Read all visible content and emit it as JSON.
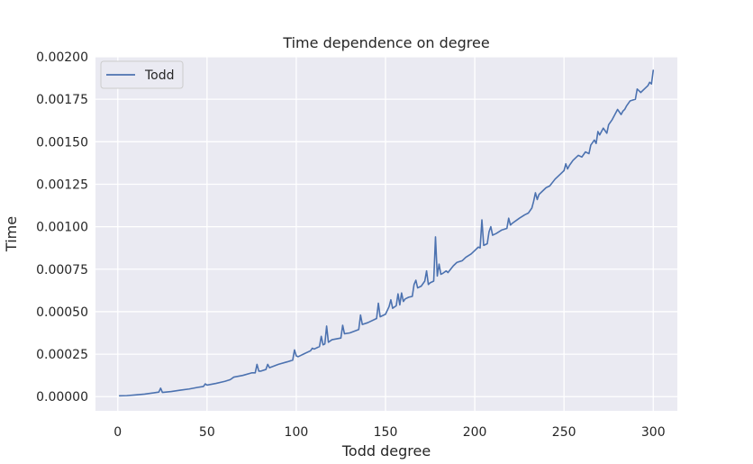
{
  "chart_data": {
    "type": "line",
    "title": "Time dependence on degree",
    "xlabel": "Todd degree",
    "ylabel": "Time",
    "xlim": [
      -12.5,
      313.5
    ],
    "ylim": [
      -8.35e-05,
      0.002
    ],
    "xticks": [
      0,
      50,
      100,
      150,
      200,
      250,
      300
    ],
    "xtick_labels": [
      "0",
      "50",
      "100",
      "150",
      "200",
      "250",
      "300"
    ],
    "yticks": [
      0,
      0.00025,
      0.0005,
      0.00075,
      0.001,
      0.00125,
      0.0015,
      0.00175,
      0.002
    ],
    "ytick_labels": [
      "0.00000",
      "0.00025",
      "0.00050",
      "0.00075",
      "0.00100",
      "0.00125",
      "0.00150",
      "0.00175",
      "0.00200"
    ],
    "grid": true,
    "legend_position": "upper-left",
    "colors": {
      "series": "#4c72b0",
      "background": "#eaeaf2",
      "grid": "#ffffff"
    },
    "series": [
      {
        "name": "Todd",
        "x": [
          1,
          5,
          10,
          15,
          20,
          23,
          24,
          25,
          30,
          35,
          40,
          45,
          48,
          49,
          50,
          55,
          60,
          63,
          65,
          70,
          75,
          77,
          78,
          79,
          80,
          83,
          84,
          85,
          90,
          95,
          98,
          99,
          100,
          101,
          105,
          108,
          109,
          110,
          113,
          114,
          115,
          116,
          117,
          118,
          120,
          125,
          126,
          127,
          130,
          135,
          136,
          137,
          140,
          145,
          146,
          147,
          150,
          152,
          153,
          154,
          156,
          157,
          158,
          159,
          160,
          161,
          163,
          165,
          166,
          167,
          168,
          170,
          172,
          173,
          174,
          175,
          177,
          178,
          179,
          180,
          181,
          182,
          184,
          185,
          188,
          190,
          193,
          195,
          198,
          200,
          202,
          203,
          204,
          205,
          207,
          208,
          209,
          210,
          212,
          215,
          218,
          219,
          220,
          221,
          225,
          228,
          230,
          232,
          233,
          234,
          235,
          236,
          238,
          240,
          242,
          245,
          248,
          250,
          251,
          252,
          253,
          255,
          258,
          260,
          262,
          264,
          265,
          267,
          268,
          269,
          270,
          272,
          274,
          275,
          277,
          280,
          282,
          283,
          284,
          285,
          287,
          290,
          291,
          292,
          293,
          295,
          297,
          298,
          299,
          300
        ],
        "y": [
          5e-06,
          6e-06,
          1e-05,
          1.5e-05,
          2.2e-05,
          2.7e-05,
          5e-05,
          2.5e-05,
          3e-05,
          3.8e-05,
          4.5e-05,
          5.5e-05,
          6e-05,
          7.5e-05,
          6.8e-05,
          7.8e-05,
          9e-05,
          0.0001,
          0.000115,
          0.000125,
          0.00014,
          0.00014,
          0.00019,
          0.00015,
          0.00015,
          0.00016,
          0.00019,
          0.00017,
          0.00019,
          0.000205,
          0.000215,
          0.000275,
          0.00024,
          0.000235,
          0.000255,
          0.00027,
          0.000285,
          0.00028,
          0.000295,
          0.000355,
          0.000305,
          0.00031,
          0.000415,
          0.00032,
          0.000335,
          0.000345,
          0.00042,
          0.00037,
          0.000375,
          0.000395,
          0.00048,
          0.000425,
          0.000435,
          0.00046,
          0.00055,
          0.00047,
          0.000485,
          0.00053,
          0.00057,
          0.00052,
          0.000535,
          0.000605,
          0.00054,
          0.00061,
          0.00056,
          0.000575,
          0.000585,
          0.00059,
          0.00066,
          0.000685,
          0.00064,
          0.00065,
          0.00068,
          0.00074,
          0.00066,
          0.00067,
          0.00068,
          0.00094,
          0.00071,
          0.00078,
          0.00072,
          0.000725,
          0.00074,
          0.00073,
          0.00077,
          0.00079,
          0.0008,
          0.00082,
          0.00084,
          0.00086,
          0.00088,
          0.000875,
          0.00104,
          0.00089,
          0.0009,
          0.00097,
          0.001,
          0.00095,
          0.00096,
          0.00098,
          0.00099,
          0.00105,
          0.00101,
          0.00102,
          0.00105,
          0.00107,
          0.00108,
          0.00111,
          0.00115,
          0.0012,
          0.00116,
          0.00119,
          0.00121,
          0.00123,
          0.00124,
          0.00128,
          0.00131,
          0.00133,
          0.00137,
          0.00134,
          0.00136,
          0.00139,
          0.00142,
          0.00141,
          0.00144,
          0.00143,
          0.00148,
          0.00151,
          0.00149,
          0.00156,
          0.00154,
          0.00158,
          0.00155,
          0.0016,
          0.00163,
          0.00169,
          0.00166,
          0.00168,
          0.00169,
          0.00171,
          0.00174,
          0.00175,
          0.00181,
          0.0018,
          0.00179,
          0.00181,
          0.00183,
          0.00185,
          0.00184,
          0.00192
        ]
      }
    ]
  }
}
